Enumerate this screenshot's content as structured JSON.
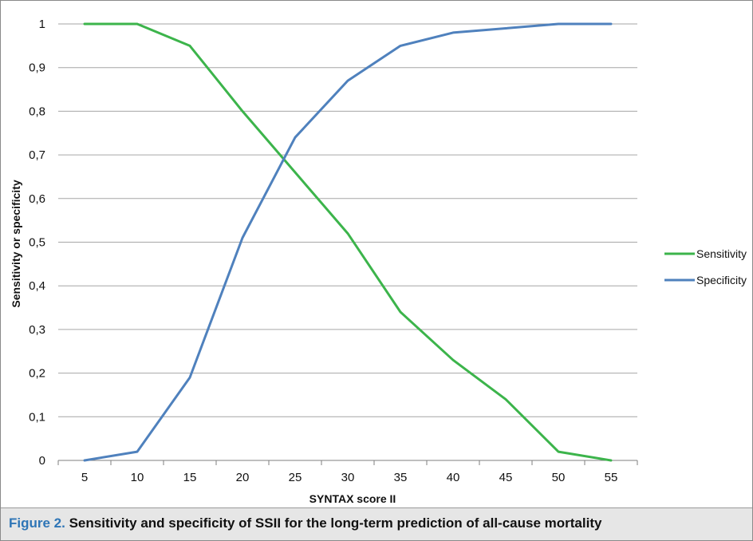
{
  "caption": {
    "label": "Figure 2.",
    "text": " Sensitivity and specificity of SSII for the long-term prediction of all-cause mortality"
  },
  "colors": {
    "sensitivity": "#3cb44b",
    "specificity": "#4f81bd",
    "gridline": "#a6a6a6",
    "caption_background": "#e6e6e6",
    "caption_label": "#2e75b6"
  },
  "chart_data": {
    "type": "line",
    "title": "",
    "xlabel": "SYNTAX score II",
    "ylabel": "Sensitivity or specificity",
    "categories": [
      "5",
      "10",
      "15",
      "20",
      "25",
      "30",
      "35",
      "40",
      "45",
      "50",
      "55"
    ],
    "x": [
      5,
      10,
      15,
      20,
      25,
      30,
      35,
      40,
      45,
      50,
      55
    ],
    "ylim": [
      0,
      1
    ],
    "yticks": [
      "0",
      "0,1",
      "0,2",
      "0,3",
      "0,4",
      "0,5",
      "0,6",
      "0,7",
      "0,8",
      "0,9",
      "1"
    ],
    "grid": true,
    "legend_position": "right",
    "series": [
      {
        "name": "Sensitivity",
        "color": "#3cb44b",
        "values": [
          1,
          1,
          0.95,
          0.8,
          0.66,
          0.52,
          0.34,
          0.23,
          0.14,
          0.02,
          0
        ]
      },
      {
        "name": "Specificity",
        "color": "#4f81bd",
        "values": [
          0,
          0.02,
          0.19,
          0.51,
          0.74,
          0.87,
          0.95,
          0.98,
          0.99,
          1,
          1
        ]
      }
    ]
  }
}
